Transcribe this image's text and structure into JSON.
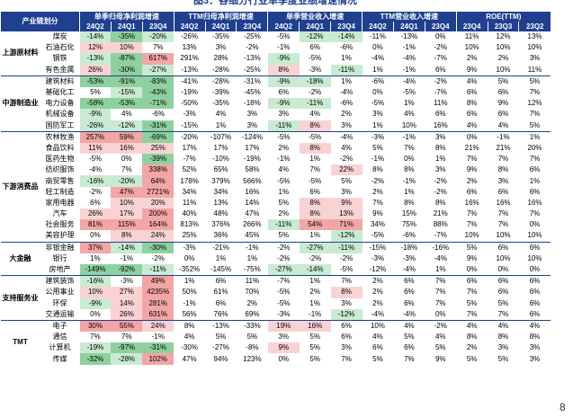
{
  "title": "图3：各细分行业单季度业绩增速情况",
  "header": {
    "group": "产业链划分",
    "metrics": [
      {
        "name": "单季归母净利润增速",
        "periods": [
          "24Q2",
          "24Q1",
          "23Q4"
        ]
      },
      {
        "name": "TTM归母净利润增速",
        "periods": [
          "24Q2",
          "24Q1",
          "23Q4"
        ]
      },
      {
        "name": "单季营业收入增速",
        "periods": [
          "24Q2",
          "24Q1",
          "23Q4"
        ]
      },
      {
        "name": "TTM营业收入增速",
        "periods": [
          "24Q2",
          "24Q1",
          "23Q4"
        ]
      },
      {
        "name": "ROE(TTM)",
        "periods": [
          "23Q4",
          "23Q3",
          "23Q2"
        ]
      }
    ]
  },
  "groups": [
    {
      "name": "上游原材料",
      "rows": [
        {
          "name": "煤炭",
          "cells": [
            "-14%",
            "-35%",
            "-20%",
            "-26%",
            "-35%",
            "-25%",
            "-5%",
            "-12%",
            "-14%",
            "-11%",
            "-13%",
            "0%",
            "11%",
            "12%",
            "13%"
          ]
        },
        {
          "name": "石油石化",
          "cells": [
            "12%",
            "10%",
            "7%",
            "13%",
            "3%",
            "-2%",
            "-1%",
            "6%",
            "-6%",
            "0%",
            "-1%",
            "-2%",
            "10%",
            "10%",
            "10%"
          ]
        },
        {
          "name": "钢铁",
          "cells": [
            "-13%",
            "-87%",
            "617%",
            "291%",
            "28%",
            "-13%",
            "-9%",
            "-5%",
            "1%",
            "-4%",
            "-4%",
            "-7%",
            "2%",
            "2%",
            "3%"
          ]
        },
        {
          "name": "有色金属",
          "cells": [
            "26%",
            "-30%",
            "-27%",
            "-13%",
            "-28%",
            "-25%",
            "8%",
            "-3%",
            "-11%",
            "1%",
            "-1%",
            "6%",
            "9%",
            "10%",
            "11%"
          ]
        }
      ]
    },
    {
      "name": "中游制造业",
      "rows": [
        {
          "name": "建筑材料",
          "cells": [
            "-53%",
            "-91%",
            "-83%",
            "-41%",
            "-28%",
            "-31%",
            "-9%",
            "-18%",
            "1%",
            "-6%",
            "-4%",
            "-2%",
            "4%",
            "5%",
            "5%"
          ]
        },
        {
          "name": "基础化工",
          "cells": [
            "5%",
            "-15%",
            "-43%",
            "-19%",
            "-39%",
            "-45%",
            "6%",
            "-2%",
            "-4%",
            "0%",
            "-5%",
            "-7%",
            "6%",
            "6%",
            "7%"
          ]
        },
        {
          "name": "电力设备",
          "cells": [
            "-58%",
            "-53%",
            "-71%",
            "-50%",
            "-35%",
            "-18%",
            "-9%",
            "-11%",
            "-6%",
            "-5%",
            "1%",
            "11%",
            "8%",
            "9%",
            "12%"
          ]
        },
        {
          "name": "机械设备",
          "cells": [
            "-9%",
            "4%",
            "-6%",
            "-3%",
            "4%",
            "3%",
            "3%",
            "4%",
            "2%",
            "3%",
            "4%",
            "6%",
            "6%",
            "6%",
            "7%"
          ]
        },
        {
          "name": "国防军工",
          "cells": [
            "-26%",
            "-12%",
            "-31%",
            "-15%",
            "1%",
            "3%",
            "-11%",
            "8%",
            "3%",
            "1%",
            "10%",
            "16%",
            "4%",
            "4%",
            "5%"
          ]
        }
      ]
    },
    {
      "name": "下游消费品",
      "rows": [
        {
          "name": "农林牧渔",
          "cells": [
            "257%",
            "59%",
            "-69%",
            "-20%",
            "-107%",
            "-124%",
            "-5%",
            "-5%",
            "-4%",
            "-3%",
            "-1%",
            "3%",
            "0%",
            "-1%",
            "1%"
          ]
        },
        {
          "name": "食品饮料",
          "cells": [
            "11%",
            "16%",
            "25%",
            "17%",
            "17%",
            "17%",
            "2%",
            "8%",
            "4%",
            "5%",
            "7%",
            "8%",
            "21%",
            "21%",
            "20%"
          ]
        },
        {
          "name": "医药生物",
          "cells": [
            "-5%",
            "0%",
            "-39%",
            "-7%",
            "-10%",
            "-19%",
            "-1%",
            "1%",
            "-2%",
            "-1%",
            "0%",
            "1%",
            "7%",
            "7%",
            "7%"
          ]
        },
        {
          "name": "纺织服饰",
          "cells": [
            "-4%",
            "7%",
            "338%",
            "52%",
            "65%",
            "58%",
            "4%",
            "7%",
            "22%",
            "8%",
            "8%",
            "3%",
            "9%",
            "8%",
            "6%"
          ]
        },
        {
          "name": "商贸零售",
          "cells": [
            "-16%",
            "-20%",
            "64%",
            "178%",
            "379%",
            "566%",
            "-5%",
            "-5%",
            "5%",
            "-2%",
            "-1%",
            "-2%",
            "2%",
            "3%",
            "1%"
          ]
        },
        {
          "name": "轻工制造",
          "cells": [
            "-2%",
            "47%",
            "2721%",
            "34%",
            "34%",
            "16%",
            "1%",
            "6%",
            "3%",
            "2%",
            "1%",
            "-2%",
            "6%",
            "6%",
            "6%"
          ]
        },
        {
          "name": "家用电器",
          "cells": [
            "6%",
            "10%",
            "20%",
            "11%",
            "13%",
            "14%",
            "5%",
            "8%",
            "9%",
            "7%",
            "8%",
            "8%",
            "16%",
            "16%",
            "16%"
          ]
        },
        {
          "name": "汽车",
          "cells": [
            "26%",
            "17%",
            "200%",
            "40%",
            "48%",
            "47%",
            "2%",
            "8%",
            "13%",
            "9%",
            "15%",
            "21%",
            "7%",
            "7%",
            "7%"
          ]
        },
        {
          "name": "社会服务",
          "cells": [
            "81%",
            "115%",
            "164%",
            "813%",
            "376%",
            "266%",
            "-11%",
            "54%",
            "71%",
            "34%",
            "75%",
            "88%",
            "7%",
            "7%",
            "0%"
          ]
        },
        {
          "name": "美容护理",
          "cells": [
            "0%",
            "8%",
            "24%",
            "25%",
            "36%",
            "45%",
            "5%",
            "1%",
            "-12%",
            "-5%",
            "-6%",
            "-7%",
            "10%",
            "10%",
            "10%"
          ]
        }
      ]
    },
    {
      "name": "大金融",
      "rows": [
        {
          "name": "非银金融",
          "cells": [
            "37%",
            "-14%",
            "-30%",
            "-3%",
            "-21%",
            "-1%",
            "-2%",
            "-27%",
            "-11%",
            "-15%",
            "-18%",
            "-16%",
            "5%",
            "6%",
            "6%"
          ]
        },
        {
          "name": "银行",
          "cells": [
            "1%",
            "-1%",
            "-2%",
            "0%",
            "1%",
            "1%",
            "-2%",
            "-2%",
            "-2%",
            "-3%",
            "-3%",
            "-4%",
            "9%",
            "10%",
            "10%"
          ]
        },
        {
          "name": "房地产",
          "cells": [
            "-149%",
            "-92%",
            "-11%",
            "-352%",
            "-145%",
            "-75%",
            "-27%",
            "-14%",
            "-5%",
            "-12%",
            "-4%",
            "1%",
            "0%",
            "0%",
            "0%"
          ]
        }
      ]
    },
    {
      "name": "支持服务业",
      "rows": [
        {
          "name": "建筑装饰",
          "cells": [
            "-16%",
            "-3%",
            "49%",
            "1%",
            "6%",
            "11%",
            "-7%",
            "1%",
            "7%",
            "2%",
            "6%",
            "7%",
            "6%",
            "6%",
            "6%"
          ]
        },
        {
          "name": "公用事业",
          "cells": [
            "10%",
            "27%",
            "4235%",
            "50%",
            "61%",
            "70%",
            "-5%",
            "2%",
            "8%",
            "2%",
            "6%",
            "7%",
            "7%",
            "6%",
            "6%"
          ]
        },
        {
          "name": "环保",
          "cells": [
            "-9%",
            "14%",
            "281%",
            "-1%",
            "6%",
            "2%",
            "-5%",
            "1%",
            "3%",
            "2%",
            "6%",
            "7%",
            "5%",
            "5%",
            "6%"
          ]
        },
        {
          "name": "交通运输",
          "cells": [
            "0%",
            "26%",
            "631%",
            "56%",
            "76%",
            "69%",
            "-3%",
            "-1%",
            "-12%",
            "-4%",
            "-4%",
            "0%",
            "7%",
            "7%",
            "6%"
          ]
        }
      ]
    },
    {
      "name": "TMT",
      "rows": [
        {
          "name": "电子",
          "cells": [
            "30%",
            "55%",
            "24%",
            "8%",
            "-13%",
            "-33%",
            "19%",
            "16%",
            "6%",
            "10%",
            "4%",
            "-2%",
            "4%",
            "4%",
            "4%"
          ]
        },
        {
          "name": "通信",
          "cells": [
            "7%",
            "7%",
            "-1%",
            "4%",
            "5%",
            "5%",
            "3%",
            "5%",
            "6%",
            "4%",
            "5%",
            "4%",
            "8%",
            "8%",
            "8%"
          ]
        },
        {
          "name": "计算机",
          "cells": [
            "-19%",
            "-97%",
            "-31%",
            "-30%",
            "-27%",
            "-8%",
            "9%",
            "5%",
            "3%",
            "6%",
            "6%",
            "5%",
            "2%",
            "3%",
            "3%"
          ]
        },
        {
          "name": "传媒",
          "cells": [
            "-32%",
            "-28%",
            "102%",
            "47%",
            "94%",
            "123%",
            "0%",
            "5%",
            "7%",
            "5%",
            "7%",
            "9%",
            "5%",
            "5%",
            "3%"
          ]
        }
      ]
    }
  ],
  "page_number": "8"
}
